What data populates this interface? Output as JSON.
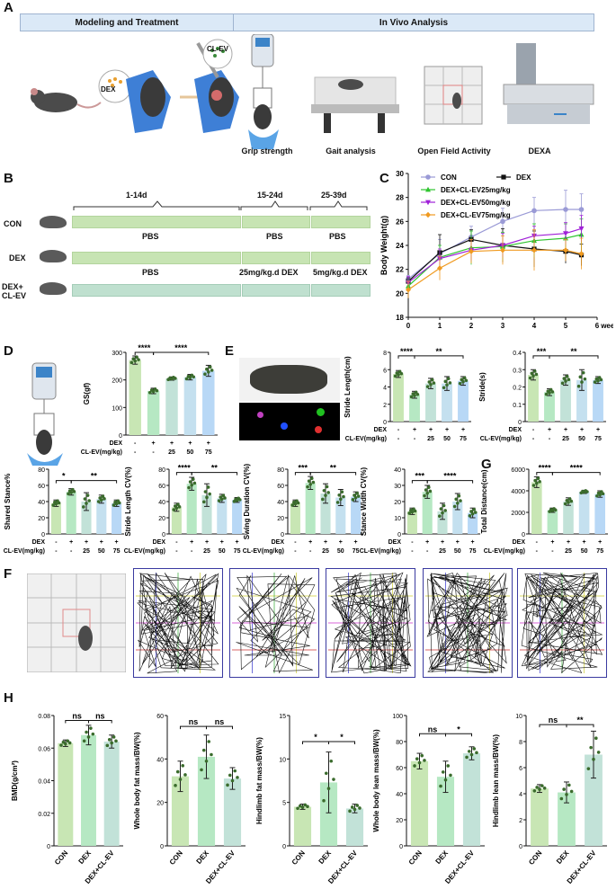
{
  "panels": {
    "A": "A",
    "B": "B",
    "C": "C",
    "D": "D",
    "E": "E",
    "F": "F",
    "G": "G",
    "H": "H"
  },
  "panelA": {
    "header_left": "Modeling and Treatment",
    "header_right": "In Vivo Analysis",
    "label_dex": "DEX",
    "label_clev": "CL-EV",
    "captions": [
      "Grip strength",
      "Gait analysis",
      "Open Field Activity",
      "DEXA"
    ]
  },
  "panelB": {
    "periods": [
      "1-14d",
      "15-24d",
      "25-39d"
    ],
    "groups": [
      "CON",
      "DEX",
      "DEX+\nCL-EV"
    ],
    "rows": [
      [
        "PBS",
        "PBS",
        "PBS"
      ],
      [
        "PBS",
        "25mg/kg.d DEX",
        "5mg/kg.d DEX"
      ]
    ]
  },
  "panelE": {
    "dots": [
      "purple",
      "blue",
      "green",
      "red"
    ]
  },
  "treat": {
    "dex_label": "DEX",
    "clev_label": "CL-EV(mg/kg)",
    "dex_row": [
      "-",
      "+",
      "+",
      "+",
      "+"
    ],
    "clev_row": [
      "-",
      "-",
      "25",
      "50",
      "75"
    ]
  },
  "colors": {
    "g1": "#c8e6b4",
    "g2": "#b6e8c3",
    "g3": "#c2e2d8",
    "g4": "#c4e0ef",
    "g5": "#b8d8f6",
    "dot": "#3a6b2c",
    "line": "#111111"
  },
  "chart_data": [
    {
      "id": "C",
      "type": "line",
      "title": "",
      "xlabel": "week",
      "ylabel": "Body Weight(g)",
      "ylim": [
        18,
        30
      ],
      "xlim": [
        0,
        6
      ],
      "x": [
        0,
        1,
        2,
        3,
        4,
        5,
        5.5
      ],
      "yticks": [
        18,
        20,
        22,
        24,
        26,
        28,
        30
      ],
      "xticks": [
        0,
        1,
        2,
        3,
        4,
        5,
        6
      ],
      "series": [
        {
          "name": "CON",
          "color": "#9a9ad6",
          "marker": "o",
          "values": [
            21.2,
            23.3,
            24.7,
            26.0,
            26.9,
            27.0,
            27.0
          ],
          "err": [
            0.3,
            1.2,
            0.9,
            1.1,
            1.1,
            1.6,
            1.3
          ]
        },
        {
          "name": "DEX",
          "color": "#111111",
          "marker": "s",
          "values": [
            21.0,
            23.4,
            24.5,
            24.0,
            23.7,
            23.5,
            23.2
          ],
          "err": [
            0.3,
            1.5,
            0.8,
            1.4,
            1.5,
            1.0,
            0.9
          ]
        },
        {
          "name": "DEX+CL-EV25mg/kg",
          "color": "#2fc42f",
          "marker": "^",
          "values": [
            20.6,
            23.0,
            23.8,
            23.9,
            24.4,
            24.6,
            24.9
          ],
          "err": [
            0.5,
            1.0,
            1.4,
            1.2,
            1.4,
            1.2,
            1.3
          ]
        },
        {
          "name": "DEX+CL-EV50mg/kg",
          "color": "#a020d8",
          "marker": "v",
          "values": [
            20.9,
            22.9,
            23.6,
            24.0,
            24.8,
            25.0,
            25.4
          ],
          "err": [
            0.5,
            0.8,
            0.9,
            1.0,
            0.8,
            0.9,
            1.1
          ]
        },
        {
          "name": "DEX+CL-EV75mg/kg",
          "color": "#f09a20",
          "marker": "d",
          "values": [
            20.3,
            22.1,
            23.5,
            23.6,
            23.6,
            23.6,
            23.3
          ],
          "err": [
            0.7,
            1.0,
            1.0,
            1.2,
            1.7,
            0.9,
            1.3
          ]
        }
      ]
    },
    {
      "id": "D",
      "type": "bar",
      "ylabel": "GS(gf)",
      "ylim": [
        0,
        300
      ],
      "yticks": [
        0,
        100,
        200,
        300
      ],
      "values": [
        272,
        160,
        205,
        210,
        233
      ],
      "err": [
        15,
        10,
        6,
        10,
        20
      ],
      "sig": [
        {
          "from": 0,
          "to": 1,
          "label": "****",
          "y": 300
        },
        {
          "from": 1,
          "to": 4,
          "label": "****",
          "y": 300
        }
      ]
    },
    {
      "id": "E1",
      "type": "bar",
      "ylabel": "Stride Length(cm)",
      "ylim": [
        0,
        8
      ],
      "yticks": [
        0,
        2,
        4,
        6,
        8
      ],
      "values": [
        5.5,
        3.1,
        4.4,
        4.4,
        4.7
      ],
      "err": [
        0.4,
        0.4,
        0.6,
        0.8,
        0.5
      ],
      "sig": [
        {
          "from": 0,
          "to": 1,
          "label": "****",
          "y": 7.6
        },
        {
          "from": 1,
          "to": 4,
          "label": "**",
          "y": 7.6
        }
      ]
    },
    {
      "id": "E2",
      "type": "bar",
      "ylabel": "Stride(s)",
      "ylim": [
        0,
        0.4
      ],
      "yticks": [
        0,
        0.1,
        0.2,
        0.3,
        0.4
      ],
      "values": [
        0.27,
        0.17,
        0.24,
        0.24,
        0.24
      ],
      "err": [
        0.03,
        0.02,
        0.03,
        0.06,
        0.02
      ],
      "sig": [
        {
          "from": 0,
          "to": 1,
          "label": "***",
          "y": 0.38
        },
        {
          "from": 1,
          "to": 4,
          "label": "**",
          "y": 0.38
        }
      ]
    },
    {
      "id": "E3",
      "type": "bar",
      "ylabel": "Shared Stance%",
      "ylim": [
        0,
        80
      ],
      "yticks": [
        0,
        20,
        40,
        60,
        80
      ],
      "values": [
        38,
        52,
        40,
        43,
        38
      ],
      "err": [
        4,
        4,
        11,
        5,
        4
      ],
      "sig": [
        {
          "from": 0,
          "to": 1,
          "label": "*",
          "y": 66
        },
        {
          "from": 1,
          "to": 4,
          "label": "**",
          "y": 66
        }
      ]
    },
    {
      "id": "E4",
      "type": "bar",
      "ylabel": "Stride Length CV(%)",
      "ylim": [
        0,
        80
      ],
      "yticks": [
        0,
        20,
        40,
        60,
        80
      ],
      "values": [
        33,
        62,
        48,
        44,
        42
      ],
      "err": [
        5,
        8,
        14,
        5,
        3
      ],
      "sig": [
        {
          "from": 0,
          "to": 1,
          "label": "****",
          "y": 76
        },
        {
          "from": 1,
          "to": 4,
          "label": "**",
          "y": 76
        }
      ]
    },
    {
      "id": "E5",
      "type": "bar",
      "ylabel": "Swing Duration CV(%)",
      "ylim": [
        0,
        80
      ],
      "yticks": [
        0,
        20,
        40,
        60,
        80
      ],
      "values": [
        38,
        63,
        50,
        45,
        46
      ],
      "err": [
        4,
        8,
        12,
        10,
        6
      ],
      "sig": [
        {
          "from": 0,
          "to": 1,
          "label": "***",
          "y": 76
        },
        {
          "from": 1,
          "to": 4,
          "label": "**",
          "y": 76
        }
      ]
    },
    {
      "id": "E6",
      "type": "bar",
      "ylabel": "Stance Width CV(%)",
      "ylim": [
        0,
        40
      ],
      "yticks": [
        0,
        10,
        20,
        30,
        40
      ],
      "values": [
        14,
        26,
        14,
        20,
        13
      ],
      "err": [
        2,
        4,
        5,
        5,
        3
      ],
      "sig": [
        {
          "from": 0,
          "to": 1,
          "label": "***",
          "y": 33
        },
        {
          "from": 1,
          "to": 4,
          "label": "****",
          "y": 33
        }
      ]
    },
    {
      "id": "G",
      "type": "bar",
      "ylabel": "Total Distance(cm)",
      "ylim": [
        0,
        6000
      ],
      "yticks": [
        0,
        2000,
        4000,
        6000
      ],
      "values": [
        4800,
        2200,
        3000,
        3900,
        3700
      ],
      "err": [
        500,
        200,
        350,
        150,
        300
      ],
      "sig": [
        {
          "from": 0,
          "to": 1,
          "label": "****",
          "y": 5700
        },
        {
          "from": 1,
          "to": 4,
          "label": "****",
          "y": 5700
        }
      ]
    },
    {
      "id": "H1",
      "type": "bar",
      "ylabel": "BMD(g/cm²)",
      "categories": [
        "CON",
        "DEX",
        "DEX+CL-EV"
      ],
      "ylim": [
        0,
        0.08
      ],
      "yticks": [
        0,
        0.02,
        0.04,
        0.06,
        0.08
      ],
      "values": [
        0.063,
        0.068,
        0.064
      ],
      "err": [
        0.002,
        0.006,
        0.004
      ],
      "sig": [
        {
          "from": 0,
          "to": 1,
          "label": "ns",
          "y": 0.077
        },
        {
          "from": 1,
          "to": 2,
          "label": "ns",
          "y": 0.077
        }
      ]
    },
    {
      "id": "H2",
      "type": "bar",
      "ylabel": "Whole body fat mass/BW(%)",
      "categories": [
        "CON",
        "DEX",
        "DEX+CL-EV"
      ],
      "ylim": [
        0,
        60
      ],
      "yticks": [
        0,
        20,
        40,
        60
      ],
      "values": [
        32,
        41,
        31
      ],
      "err": [
        7,
        10,
        5
      ],
      "sig": [
        {
          "from": 0,
          "to": 1,
          "label": "ns",
          "y": 55
        },
        {
          "from": 1,
          "to": 2,
          "label": "ns",
          "y": 55
        }
      ]
    },
    {
      "id": "H3",
      "type": "bar",
      "ylabel": "Hindlimb fat mass/BW(%)",
      "categories": [
        "CON",
        "DEX",
        "DEX+CL-EV"
      ],
      "ylim": [
        0,
        15
      ],
      "yticks": [
        0,
        5,
        10,
        15
      ],
      "values": [
        4.5,
        7.3,
        4.3
      ],
      "err": [
        0.3,
        3.5,
        0.5
      ],
      "sig": [
        {
          "from": 0,
          "to": 1,
          "label": "*",
          "y": 12
        },
        {
          "from": 1,
          "to": 2,
          "label": "*",
          "y": 12
        }
      ]
    },
    {
      "id": "H4",
      "type": "bar",
      "ylabel": "Whole body lean mass/BW(%)",
      "categories": [
        "CON",
        "DEX",
        "DEX+CL-EV"
      ],
      "ylim": [
        0,
        100
      ],
      "yticks": [
        0,
        20,
        40,
        60,
        80,
        100
      ],
      "values": [
        65,
        53,
        71
      ],
      "err": [
        6,
        12,
        5
      ],
      "sig": [
        {
          "from": 0,
          "to": 1,
          "label": "ns",
          "y": 86
        },
        {
          "from": 1,
          "to": 2,
          "label": "*",
          "y": 86
        }
      ]
    },
    {
      "id": "H5",
      "type": "bar",
      "ylabel": "Hindlimb lean mass/BW(%)",
      "categories": [
        "CON",
        "DEX",
        "DEX+CL-EV"
      ],
      "ylim": [
        0,
        10
      ],
      "yticks": [
        0,
        2,
        4,
        6,
        8,
        10
      ],
      "values": [
        4.4,
        4.1,
        7.0
      ],
      "err": [
        0.3,
        0.8,
        1.8
      ],
      "sig": [
        {
          "from": 0,
          "to": 1,
          "label": "ns",
          "y": 9.3
        },
        {
          "from": 1,
          "to": 2,
          "label": "**",
          "y": 9.3
        }
      ]
    }
  ]
}
